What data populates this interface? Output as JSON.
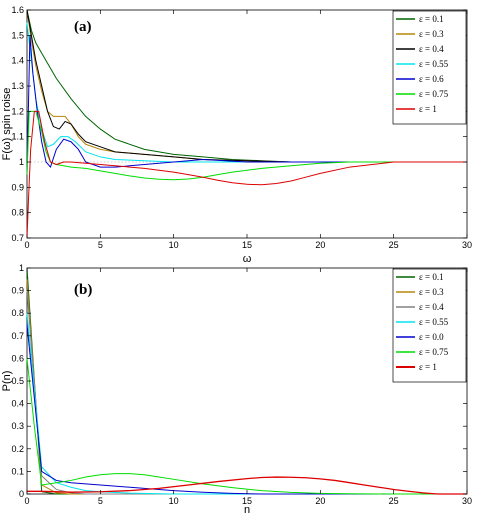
{
  "chart_data": [
    {
      "type": "line",
      "panel_label": "(a)",
      "xlabel": "ω",
      "ylabel": "F(ω) spin roise",
      "xlim": [
        0,
        30
      ],
      "ylim": [
        0.7,
        1.6
      ],
      "xticks": [
        0,
        5,
        10,
        15,
        20,
        25,
        30
      ],
      "yticks": [
        0.7,
        0.8,
        0.9,
        1,
        1.1,
        1.2,
        1.3,
        1.4,
        1.5,
        1.6
      ],
      "grid": false,
      "legend_position": "top-right",
      "reference_line": 1,
      "series": [
        {
          "name": "ε = 0.1",
          "color": "#006400",
          "x": [
            0,
            0.3,
            0.6,
            1,
            1.5,
            2,
            3,
            4,
            5,
            6,
            8,
            10,
            12,
            14,
            16,
            18,
            20,
            25,
            30
          ],
          "y": [
            1.6,
            1.52,
            1.47,
            1.43,
            1.38,
            1.33,
            1.25,
            1.18,
            1.13,
            1.09,
            1.05,
            1.03,
            1.02,
            1.01,
            1.005,
            1.0,
            1.0,
            1.0,
            1.0
          ]
        },
        {
          "name": "ε = 0.3",
          "color": "#b8860b",
          "x": [
            0,
            0.3,
            0.6,
            1,
            1.4,
            1.8,
            2.2,
            2.6,
            3,
            3.5,
            4,
            5,
            6,
            8,
            10,
            12,
            15,
            18,
            20,
            25,
            30
          ],
          "y": [
            1.6,
            1.48,
            1.38,
            1.28,
            1.2,
            1.18,
            1.18,
            1.18,
            1.15,
            1.1,
            1.07,
            1.05,
            1.04,
            1.03,
            1.02,
            1.01,
            1.005,
            1.0,
            1.0,
            1.0,
            1.0
          ]
        },
        {
          "name": "ε = 0.4",
          "color": "#000000",
          "x": [
            0,
            0.3,
            0.6,
            1,
            1.4,
            1.8,
            2.2,
            2.6,
            3,
            3.5,
            4,
            5,
            6,
            8,
            10,
            12,
            15,
            18,
            20,
            25,
            30
          ],
          "y": [
            1.6,
            1.5,
            1.4,
            1.3,
            1.2,
            1.14,
            1.13,
            1.16,
            1.15,
            1.11,
            1.08,
            1.06,
            1.04,
            1.03,
            1.02,
            1.01,
            1.005,
            1.0,
            1.0,
            1.0,
            1.0
          ]
        },
        {
          "name": "ε = 0.55",
          "color": "#00e5ee",
          "x": [
            0,
            0.3,
            0.6,
            1,
            1.4,
            1.8,
            2.3,
            2.8,
            3.3,
            4,
            5,
            6,
            8,
            10,
            12,
            15,
            18,
            20,
            25,
            30
          ],
          "y": [
            1.55,
            1.4,
            1.25,
            1.13,
            1.06,
            1.07,
            1.1,
            1.1,
            1.08,
            1.04,
            1.02,
            1.01,
            1.005,
            1.0,
            1.0,
            1.0,
            1.0,
            1.0,
            1.0,
            1.0
          ]
        },
        {
          "name": "ε = 0.6",
          "color": "#0000cd",
          "x": [
            0,
            0.2,
            0.4,
            0.7,
            1,
            1.3,
            1.6,
            2,
            2.5,
            3,
            3.5,
            4,
            5,
            6,
            8,
            10,
            12,
            15,
            20,
            25,
            30
          ],
          "y": [
            0.95,
            1.5,
            1.35,
            1.2,
            1.08,
            1.0,
            0.98,
            1.05,
            1.09,
            1.08,
            1.05,
            1.0,
            0.98,
            0.98,
            0.99,
            1.0,
            1.01,
            1.0,
            1.0,
            1.0,
            1.0
          ]
        },
        {
          "name": "ε = 0.75",
          "color": "#00dd00",
          "x": [
            0,
            0.15,
            0.3,
            0.6,
            1,
            1.3,
            1.6,
            2,
            2.5,
            3,
            4,
            5,
            6,
            7,
            8,
            9,
            10,
            11,
            12,
            13,
            14,
            16,
            18,
            20,
            22,
            25,
            30
          ],
          "y": [
            0.95,
            1.2,
            1.2,
            1.2,
            1.12,
            1.04,
            1.0,
            0.99,
            0.985,
            0.98,
            0.975,
            0.965,
            0.955,
            0.945,
            0.937,
            0.932,
            0.93,
            0.933,
            0.94,
            0.95,
            0.96,
            0.975,
            0.985,
            0.995,
            1.0,
            1.0,
            1.0
          ]
        },
        {
          "name": "ε = 1",
          "color": "#dd0000",
          "x": [
            0,
            0.1,
            0.25,
            0.5,
            0.8,
            1.2,
            1.6,
            2,
            2.5,
            3,
            4,
            5,
            6,
            8,
            10,
            11,
            12,
            13,
            14,
            15,
            16,
            17,
            18,
            19,
            20,
            22,
            25,
            30
          ],
          "y": [
            0.7,
            0.85,
            1.05,
            1.2,
            1.2,
            1.08,
            1.0,
            0.99,
            1.0,
            1.0,
            0.995,
            0.99,
            0.985,
            0.975,
            0.96,
            0.95,
            0.94,
            0.928,
            0.918,
            0.912,
            0.91,
            0.915,
            0.925,
            0.94,
            0.955,
            0.98,
            1.0,
            1.0
          ]
        }
      ]
    },
    {
      "type": "line",
      "panel_label": "(b)",
      "xlabel": "n",
      "ylabel": "P(n)",
      "xlim": [
        0,
        30
      ],
      "ylim": [
        0,
        1
      ],
      "xticks": [
        0,
        5,
        10,
        15,
        20,
        25,
        30
      ],
      "yticks": [
        0,
        0.1,
        0.2,
        0.3,
        0.4,
        0.5,
        0.6,
        0.7,
        0.8,
        0.9,
        1
      ],
      "grid": false,
      "legend_position": "top-right",
      "series": [
        {
          "name": "ε = 0.1",
          "color": "#006400",
          "x": [
            0,
            1,
            2,
            3,
            5,
            8,
            10,
            15,
            30
          ],
          "y": [
            1.0,
            0.01,
            0.0,
            0.0,
            0.0,
            0.0,
            0.0,
            0.0,
            0.0
          ]
        },
        {
          "name": "ε = 0.3",
          "color": "#b8860b",
          "x": [
            0,
            1,
            2,
            3,
            5,
            8,
            10,
            15,
            30
          ],
          "y": [
            0.95,
            0.04,
            0.005,
            0.0,
            0.0,
            0.0,
            0.0,
            0.0,
            0.0
          ]
        },
        {
          "name": "ε = 0.4",
          "color": "#808080",
          "x": [
            0,
            1,
            2,
            3,
            4,
            6,
            8,
            10,
            15,
            30
          ],
          "y": [
            0.9,
            0.08,
            0.02,
            0.005,
            0.0,
            0.0,
            0.0,
            0.0,
            0.0,
            0.0
          ]
        },
        {
          "name": "ε = 0.55",
          "color": "#00e5ee",
          "x": [
            0,
            1,
            2,
            3,
            4,
            5,
            7,
            10,
            15,
            30
          ],
          "y": [
            0.8,
            0.12,
            0.05,
            0.03,
            0.015,
            0.01,
            0.004,
            0.0,
            0.0,
            0.0
          ]
        },
        {
          "name": "ε = 0.0",
          "color": "#0000cd",
          "x": [
            0,
            1,
            2,
            3,
            4,
            6,
            8,
            10,
            12,
            14,
            16,
            20,
            30
          ],
          "y": [
            0.75,
            0.1,
            0.06,
            0.05,
            0.045,
            0.035,
            0.025,
            0.015,
            0.008,
            0.003,
            0.0,
            0.0,
            0.0
          ]
        },
        {
          "name": "ε = 0.75",
          "color": "#00dd00",
          "x": [
            0,
            0.5,
            1,
            2,
            3,
            4,
            5,
            6,
            7,
            8,
            9,
            10,
            12,
            14,
            16,
            18,
            20,
            22,
            25,
            30
          ],
          "y": [
            0.6,
            0.3,
            0.04,
            0.05,
            0.06,
            0.075,
            0.085,
            0.09,
            0.09,
            0.085,
            0.075,
            0.065,
            0.045,
            0.028,
            0.015,
            0.007,
            0.003,
            0.001,
            0.0,
            0.0
          ]
        },
        {
          "name": "ε = 1",
          "color": "#dd0000",
          "x": [
            0,
            1,
            3,
            5,
            7,
            9,
            11,
            13,
            15,
            16,
            17,
            18,
            19,
            20,
            21,
            22,
            23,
            24,
            25,
            26,
            27,
            28,
            30
          ],
          "y": [
            0.012,
            0.012,
            0.008,
            0.01,
            0.015,
            0.025,
            0.04,
            0.055,
            0.068,
            0.073,
            0.075,
            0.074,
            0.072,
            0.067,
            0.06,
            0.05,
            0.04,
            0.03,
            0.02,
            0.012,
            0.005,
            0.0,
            0.0
          ]
        }
      ]
    }
  ]
}
